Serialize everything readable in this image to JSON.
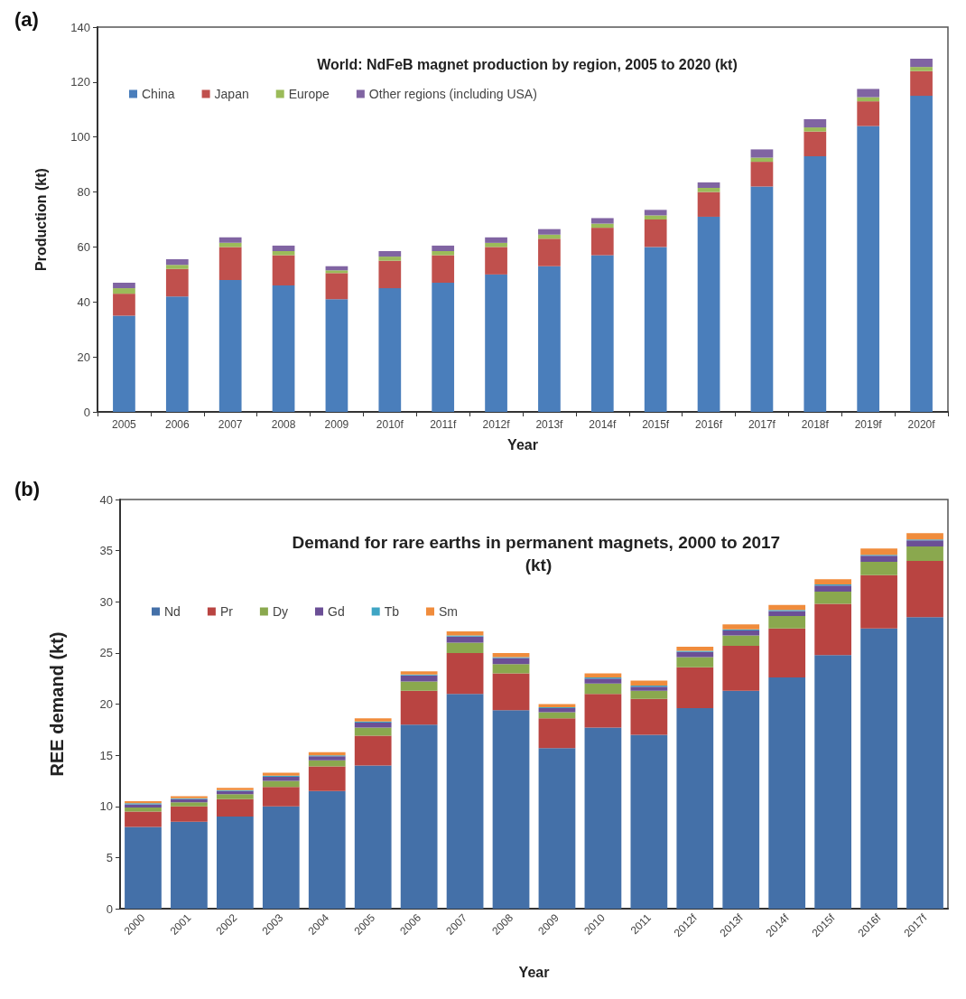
{
  "chart_data": [
    {
      "type": "bar",
      "title": "World: NdFeB magnet production by region, 2005 to 2020 (kt)",
      "xlabel": "Year",
      "ylabel": "Production (kt)",
      "annotations": [
        "(a)"
      ],
      "stacked": true,
      "grid": false,
      "legend": "top left",
      "ylim": [
        0,
        140
      ],
      "yticks": [
        0,
        20,
        40,
        60,
        80,
        100,
        120,
        140
      ],
      "categories": [
        "2005",
        "2006",
        "2007",
        "2008",
        "2009",
        "2010f",
        "2011f",
        "2012f",
        "2013f",
        "2014f",
        "2015f",
        "2016f",
        "2017f",
        "2018f",
        "2019f",
        "2020f"
      ],
      "series": [
        {
          "name": "China",
          "color": "#4a7ebb",
          "values": [
            35,
            42,
            48,
            46,
            41,
            45,
            47,
            50,
            53,
            57,
            60,
            71,
            82,
            93,
            104,
            115
          ]
        },
        {
          "name": "Japan",
          "color": "#c0504d",
          "values": [
            8,
            10,
            12,
            11,
            9.5,
            10,
            10,
            10,
            10,
            10,
            10,
            9,
            9,
            9,
            9,
            9
          ]
        },
        {
          "name": "Europe",
          "color": "#9bbb59",
          "values": [
            2,
            1.5,
            1.5,
            1.5,
            1,
            1.5,
            1.5,
            1.5,
            1.5,
            1.5,
            1.5,
            1.5,
            1.5,
            1.5,
            1.5,
            1.5
          ]
        },
        {
          "name": "Other regions (including USA)",
          "color": "#8064a2",
          "values": [
            2,
            2,
            2,
            2,
            1.5,
            2,
            2,
            2,
            2,
            2,
            2,
            2,
            3,
            3,
            3,
            3
          ]
        }
      ]
    },
    {
      "type": "bar",
      "title": "Demand for rare earths in permanent magnets, 2000 to 2017 (kt)",
      "xlabel": "Year",
      "ylabel": "REE demand (kt)",
      "annotations": [
        "(b)"
      ],
      "stacked": true,
      "grid": false,
      "legend": "top left",
      "ylim": [
        0,
        40
      ],
      "yticks": [
        0,
        5,
        10,
        15,
        20,
        25,
        30,
        35,
        40
      ],
      "categories": [
        "2000",
        "2001",
        "2002",
        "2003",
        "2004",
        "2005",
        "2006",
        "2007",
        "2008",
        "2009",
        "2010",
        "2011",
        "2012f",
        "2013f",
        "2014f",
        "2015f",
        "2016f",
        "2017f"
      ],
      "series": [
        {
          "name": "Nd",
          "color": "#4470a8",
          "values": [
            8,
            8.5,
            9,
            10,
            11.5,
            14,
            18,
            21,
            19.4,
            15.7,
            17.7,
            17,
            19.6,
            21.3,
            22.6,
            24.8,
            27.4,
            28.5
          ]
        },
        {
          "name": "Pr",
          "color": "#b94441",
          "values": [
            1.5,
            1.5,
            1.7,
            1.9,
            2.4,
            2.9,
            3.3,
            4,
            3.6,
            2.9,
            3.3,
            3.5,
            4,
            4.4,
            4.8,
            5,
            5.2,
            5.5
          ]
        },
        {
          "name": "Dy",
          "color": "#8aa84e",
          "values": [
            0.4,
            0.4,
            0.5,
            0.6,
            0.6,
            0.8,
            0.9,
            1,
            0.9,
            0.6,
            1,
            0.8,
            1,
            1,
            1.2,
            1.2,
            1.3,
            1.4
          ]
        },
        {
          "name": "Gd",
          "color": "#6b4f96",
          "values": [
            0.3,
            0.3,
            0.3,
            0.4,
            0.4,
            0.5,
            0.6,
            0.6,
            0.6,
            0.4,
            0.5,
            0.4,
            0.5,
            0.5,
            0.5,
            0.6,
            0.6,
            0.6
          ]
        },
        {
          "name": "Tb",
          "color": "#3fa5c4",
          "values": [
            0.1,
            0.1,
            0.1,
            0.1,
            0.1,
            0.1,
            0.1,
            0.1,
            0.1,
            0.1,
            0.1,
            0.1,
            0.1,
            0.1,
            0.1,
            0.1,
            0.1,
            0.1
          ]
        },
        {
          "name": "Sm",
          "color": "#f08c3c",
          "values": [
            0.2,
            0.2,
            0.2,
            0.3,
            0.3,
            0.3,
            0.3,
            0.4,
            0.4,
            0.3,
            0.4,
            0.5,
            0.4,
            0.5,
            0.5,
            0.5,
            0.6,
            0.6
          ]
        }
      ]
    }
  ]
}
